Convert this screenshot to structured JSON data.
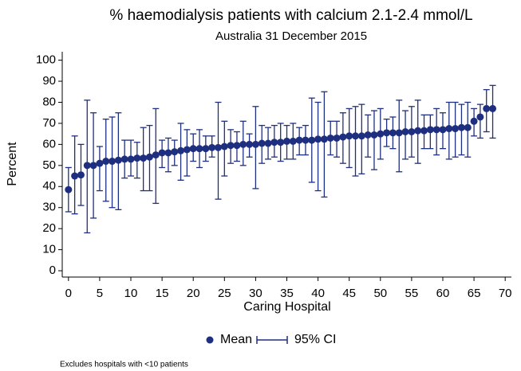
{
  "chart_data": {
    "type": "scatter",
    "title": "% haemodialysis patients with calcium 2.1-2.4 mmol/L",
    "subtitle": "Australia 31 December 2015",
    "x_label": "Caring Hospital",
    "y_label": "Percent",
    "note": "Excludes hospitals with <10 patients",
    "x": [
      0,
      1,
      2,
      3,
      4,
      5,
      6,
      7,
      8,
      9,
      10,
      11,
      12,
      13,
      14,
      15,
      16,
      17,
      18,
      19,
      20,
      21,
      22,
      23,
      24,
      25,
      26,
      27,
      28,
      29,
      30,
      31,
      32,
      33,
      34,
      35,
      36,
      37,
      38,
      39,
      40,
      41,
      42,
      43,
      44,
      45,
      46,
      47,
      48,
      49,
      50,
      51,
      52,
      53,
      54,
      55,
      56,
      57,
      58,
      59,
      60,
      61,
      62,
      63,
      64,
      65,
      66,
      67,
      68
    ],
    "series": [
      {
        "name": "Mean",
        "color": "#1f2f7f",
        "values": [
          38.5,
          45,
          45.5,
          50,
          50,
          51,
          52,
          52,
          52.5,
          53,
          53,
          53.5,
          53.5,
          54,
          55,
          56,
          56,
          56.5,
          57,
          57.5,
          58,
          58,
          58,
          58.5,
          58.5,
          59,
          59.5,
          59.5,
          60,
          60,
          60,
          60.5,
          60.5,
          61,
          61,
          61.5,
          61.5,
          62,
          62,
          62,
          62.5,
          62.5,
          63,
          63,
          63.5,
          64,
          64,
          64,
          64.5,
          64.5,
          65,
          65.5,
          65.5,
          65.5,
          66,
          66,
          66.5,
          66.5,
          67,
          67,
          67,
          67.5,
          67.5,
          68,
          68,
          71,
          73,
          77,
          77
        ]
      },
      {
        "name": "95% CI",
        "color": "#1f2f7f",
        "lower": [
          28,
          27,
          31,
          18,
          25,
          38,
          33,
          30,
          29,
          44,
          45,
          44,
          38,
          38,
          32,
          49,
          47,
          50,
          43,
          45,
          52,
          49,
          52,
          54,
          34,
          45,
          51,
          52,
          50,
          54,
          39,
          51,
          53,
          54,
          52,
          53,
          53,
          55,
          55,
          42,
          38,
          35,
          55,
          54,
          51,
          49,
          45,
          46,
          54,
          48,
          53,
          59,
          58,
          47,
          53,
          54,
          51,
          58,
          58,
          55,
          58,
          53,
          54,
          55,
          54,
          64,
          63,
          66,
          63
        ],
        "upper": [
          49,
          64,
          60,
          81,
          75,
          59,
          72,
          73,
          75,
          62,
          62,
          61,
          68,
          69,
          77,
          62,
          63,
          62,
          70,
          67,
          65,
          67,
          64,
          64,
          80,
          71,
          67,
          66,
          71,
          65,
          78,
          69,
          68,
          69,
          70,
          69,
          70,
          68,
          69,
          82,
          80,
          85,
          71,
          71,
          75,
          77,
          78,
          79,
          74,
          76,
          77,
          72,
          73,
          81,
          76,
          78,
          81,
          74,
          74,
          77,
          75,
          80,
          80,
          79,
          80,
          77,
          79,
          86,
          88
        ]
      }
    ],
    "xlim": [
      -1,
      71
    ],
    "ylim": [
      -3,
      104
    ],
    "xticks": [
      0,
      5,
      10,
      15,
      20,
      25,
      30,
      35,
      40,
      45,
      50,
      55,
      60,
      65,
      70
    ],
    "yticks": [
      0,
      10,
      20,
      30,
      40,
      50,
      60,
      70,
      80,
      90,
      100
    ]
  }
}
